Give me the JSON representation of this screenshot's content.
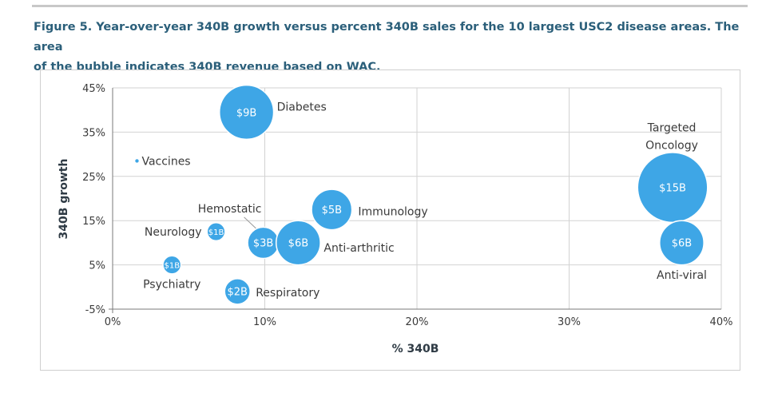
{
  "figure": {
    "caption_line1": "Figure 5. Year-over-year 340B growth versus percent 340B sales for the 10 largest USC2 disease areas. The area",
    "caption_line2": "of the bubble indicates 340B revenue based on WAC."
  },
  "colors": {
    "bubble": "#3ea6e6",
    "grid": "#d2d2d2",
    "caption": "#2b5f7a"
  },
  "chart_data": {
    "type": "scatter",
    "title": "",
    "xlabel": "% 340B",
    "ylabel": "340B growth",
    "xlim": [
      0,
      40
    ],
    "ylim": [
      -5,
      45
    ],
    "x_ticks": [
      "0%",
      "10%",
      "20%",
      "30%",
      "40%"
    ],
    "y_ticks": [
      "45%",
      "35%",
      "25%",
      "15%",
      "5%",
      "-5%"
    ],
    "grid": true,
    "points": [
      {
        "name": "Diabetes",
        "x": 8.8,
        "y": 39.5,
        "value_label": "$9B",
        "revenue_b": 9
      },
      {
        "name": "Vaccines",
        "x": 1.6,
        "y": 28.5,
        "value_label": "",
        "revenue_b": 0
      },
      {
        "name": "Targeted Oncology",
        "x": 36.8,
        "y": 22.5,
        "value_label": "$15B",
        "revenue_b": 15
      },
      {
        "name": "Immunology",
        "x": 14.4,
        "y": 17.5,
        "value_label": "$5B",
        "revenue_b": 5
      },
      {
        "name": "Hemostatic",
        "x": 9.9,
        "y": 10,
        "value_label": "$3B",
        "revenue_b": 3
      },
      {
        "name": "Neurology",
        "x": 6.8,
        "y": 12.5,
        "value_label": "$1B",
        "revenue_b": 1
      },
      {
        "name": "Anti-arthritic",
        "x": 12.2,
        "y": 10,
        "value_label": "$6B",
        "revenue_b": 6
      },
      {
        "name": "Anti-viral",
        "x": 37.4,
        "y": 10,
        "value_label": "$6B",
        "revenue_b": 6
      },
      {
        "name": "Psychiatry",
        "x": 3.9,
        "y": 5,
        "value_label": "$1B",
        "revenue_b": 1
      },
      {
        "name": "Respiratory",
        "x": 8.2,
        "y": -1,
        "value_label": "$2B",
        "revenue_b": 2
      }
    ]
  }
}
